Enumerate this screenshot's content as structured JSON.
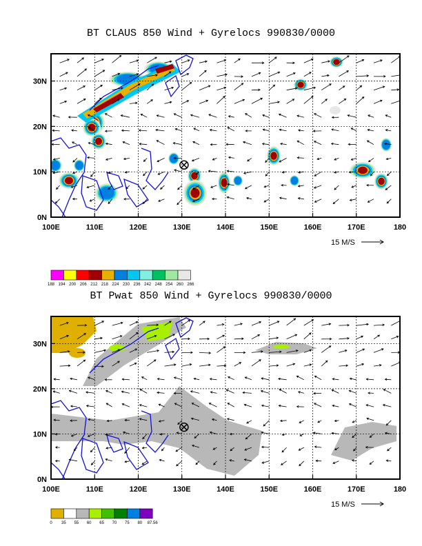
{
  "chart_data": [
    {
      "type": "heatmap",
      "title": "BT CLAUS 850 Wind + Gyrelocs 990830/0000",
      "x_ticks": [
        "100E",
        "110E",
        "120E",
        "130E",
        "140E",
        "150E",
        "160E",
        "170E",
        "180"
      ],
      "y_ticks": [
        "0N",
        "10N",
        "20N",
        "30N"
      ],
      "xlim": [
        100,
        180
      ],
      "ylim": [
        0,
        36
      ],
      "grid": true,
      "reference_vector": "15 M/S",
      "gyre_location": {
        "lon": 130.5,
        "lat": 11.5
      },
      "colorbar": {
        "labels": [
          "188",
          "194",
          "200",
          "206",
          "212",
          "218",
          "224",
          "230",
          "236",
          "242",
          "248",
          "254",
          "260",
          "266"
        ],
        "colors": [
          "#ff00ff",
          "#ffff00",
          "#ff0000",
          "#a00000",
          "#e8b000",
          "#0080e0",
          "#00c8f0",
          "#80f0e0",
          "#00c060",
          "#a0e8a0",
          "#e8e8e8"
        ]
      }
    },
    {
      "type": "heatmap",
      "title": "BT Pwat 850 Wind + Gyrelocs 990830/0000",
      "x_ticks": [
        "100E",
        "110E",
        "120E",
        "130E",
        "140E",
        "150E",
        "160E",
        "170E",
        "180"
      ],
      "y_ticks": [
        "0N",
        "10N",
        "20N",
        "30N"
      ],
      "xlim": [
        100,
        180
      ],
      "ylim": [
        0,
        36
      ],
      "grid": true,
      "reference_vector": "15 M/S",
      "gyre_location": {
        "lon": 130.5,
        "lat": 11.5
      },
      "colorbar": {
        "labels": [
          "0",
          "35",
          "55",
          "60",
          "65",
          "70",
          "75",
          "80",
          "87.56"
        ],
        "colors": [
          "#e0b000",
          "#ffffff",
          "#b8b8b8",
          "#a8f000",
          "#40c000",
          "#008000",
          "#0080e0",
          "#8000c0"
        ]
      }
    }
  ]
}
